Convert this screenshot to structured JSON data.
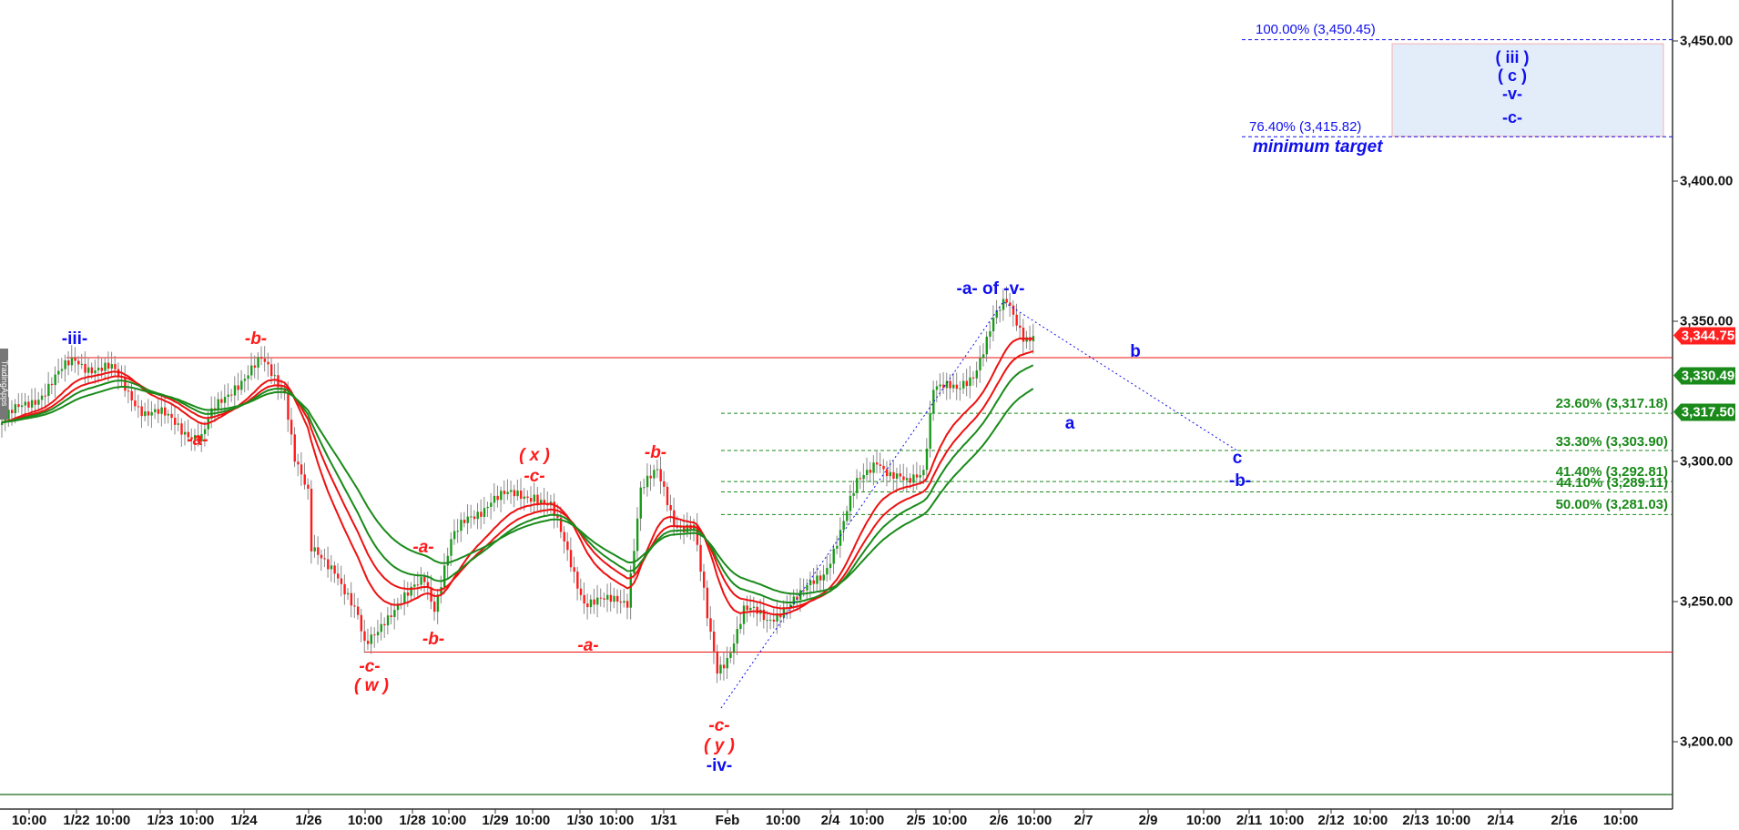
{
  "chart_data": {
    "type": "candlestick",
    "title": "",
    "ylim": [
      3180,
      3460
    ],
    "y_ticks": [
      "3,450.00",
      "3,400.00",
      "3,350.00",
      "3,300.00",
      "3,250.00",
      "3,200.00"
    ],
    "x_ticks": [
      "10:00",
      "1/22",
      "10:00",
      "1/23",
      "10:00",
      "1/24",
      "1/26",
      "10:00",
      "1/28",
      "10:00",
      "1/29",
      "10:00",
      "1/30",
      "10:00",
      "1/31",
      "Feb",
      "10:00",
      "2/4",
      "10:00",
      "2/5",
      "10:00",
      "2/6",
      "10:00",
      "2/7",
      "2/9",
      "10:00",
      "2/11",
      "10:00",
      "2/12",
      "10:00",
      "2/13",
      "10:00",
      "2/14",
      "2/16",
      "10:00"
    ],
    "price_path_approx": [
      [
        0,
        3314
      ],
      [
        5,
        3318
      ],
      [
        13,
        3326
      ],
      [
        22,
        3336
      ],
      [
        33,
        3332
      ],
      [
        43,
        3318
      ],
      [
        52,
        3314
      ],
      [
        60,
        3308
      ],
      [
        63,
        3316
      ],
      [
        70,
        3328
      ],
      [
        78,
        3335
      ],
      [
        85,
        3326
      ],
      [
        88,
        3302
      ],
      [
        92,
        3287
      ],
      [
        93,
        3267
      ],
      [
        100,
        3263
      ],
      [
        107,
        3243
      ],
      [
        109,
        3233
      ],
      [
        115,
        3245
      ],
      [
        122,
        3251
      ],
      [
        127,
        3259
      ],
      [
        130,
        3249
      ],
      [
        135,
        3271
      ],
      [
        140,
        3279
      ],
      [
        147,
        3287
      ],
      [
        153,
        3287
      ],
      [
        160,
        3289
      ],
      [
        165,
        3283
      ],
      [
        170,
        3267
      ],
      [
        175,
        3251
      ],
      [
        182,
        3249
      ],
      [
        188,
        3251
      ],
      [
        192,
        3291
      ],
      [
        197,
        3295
      ],
      [
        202,
        3279
      ],
      [
        208,
        3277
      ],
      [
        212,
        3243
      ],
      [
        215,
        3225
      ],
      [
        218,
        3231
      ],
      [
        223,
        3247
      ],
      [
        230,
        3243
      ],
      [
        235,
        3249
      ],
      [
        240,
        3251
      ],
      [
        247,
        3261
      ],
      [
        252,
        3275
      ],
      [
        257,
        3291
      ],
      [
        263,
        3302
      ],
      [
        267,
        3295
      ],
      [
        272,
        3291
      ],
      [
        277,
        3298
      ],
      [
        280,
        3328
      ],
      [
        287,
        3324
      ],
      [
        292,
        3332
      ],
      [
        298,
        3350
      ],
      [
        302,
        3356
      ],
      [
        307,
        3346
      ],
      [
        310,
        3344.75
      ]
    ],
    "price_labels": {
      "last": "3,344.75",
      "ma_fast": "3,330.49",
      "ma_slow": "3,317.50"
    },
    "last_price": 3344.75,
    "ma_fast_last": 3330.49,
    "ma_slow_last": 3317.5,
    "horizontal_levels": {
      "resistance": 3337,
      "support": 3232
    },
    "fib_retracements": [
      {
        "label": "23.60% (3,317.18)",
        "value": 3317.18
      },
      {
        "label": "33.30% (3,303.90)",
        "value": 3303.9
      },
      {
        "label": "41.40% (3,292.81)",
        "value": 3292.81
      },
      {
        "label": "44.10% (3,289.11)",
        "value": 3289.11
      },
      {
        "label": "50.00% (3,281.03)",
        "value": 3281.03
      }
    ],
    "targets": [
      {
        "label": "100.00% (3,450.45)",
        "value": 3450.45
      },
      {
        "label": "76.40% (3,415.82)",
        "value": 3415.82
      }
    ],
    "target_note": "minimum target",
    "target_box_labels": [
      "( iii )",
      "( c )",
      "-v-",
      "-c-"
    ],
    "annotations": [
      {
        "text": "-iii-"
      },
      {
        "text": "-b-"
      },
      {
        "text": "-a-"
      },
      {
        "text": "( x )"
      },
      {
        "text": "-c-"
      },
      {
        "text": "-b-"
      },
      {
        "text": "-a-"
      },
      {
        "text": "-b-"
      },
      {
        "text": "-c-"
      },
      {
        "text": "( w )"
      },
      {
        "text": "-a-"
      },
      {
        "text": "-c-"
      },
      {
        "text": "( y )"
      },
      {
        "text": "-iv-"
      },
      {
        "text": "-a- of -v-"
      },
      {
        "text": "b"
      },
      {
        "text": "a"
      },
      {
        "text": "c"
      },
      {
        "text": "-b-"
      }
    ],
    "colors": {
      "up": "#1a9a1a",
      "down": "#ff1a1a",
      "ma_red": "#ee1111",
      "ma_green": "#1a8a1a",
      "wave_blue": "#1010ee"
    }
  },
  "side_tab": "TradingApps"
}
